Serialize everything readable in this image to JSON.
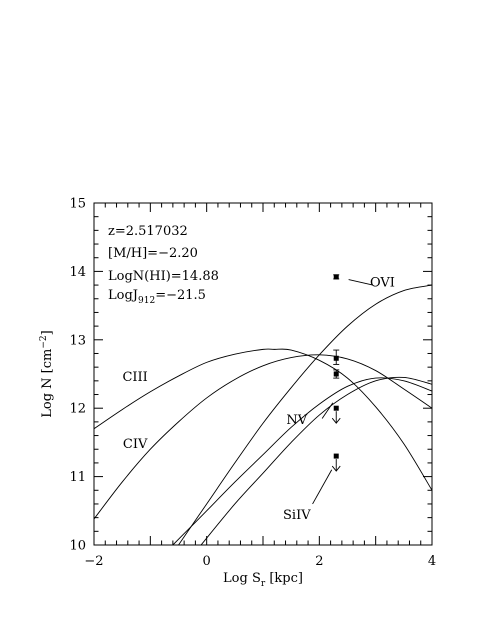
{
  "chart_data": {
    "type": "line",
    "xlabel_main": "Log S",
    "xlabel_sub": "r",
    "xlabel_unit": " [kpc]",
    "ylabel": "Log N [cm",
    "ylabel_sup": "−2",
    "ylabel_close": "]",
    "xlim": [
      -2,
      4
    ],
    "ylim": [
      10,
      15
    ],
    "x_ticks": [
      "−2",
      "0",
      "2",
      "4"
    ],
    "y_ticks": [
      "10",
      "11",
      "12",
      "13",
      "14",
      "15"
    ],
    "annotations": {
      "z": "z=2.517032",
      "metallicity": "[M/H]=−2.20",
      "nhi": "LogN(HI)=14.88",
      "j_main": "LogJ",
      "j_sub": "912",
      "j_value": "=−21.5"
    },
    "series": [
      {
        "name": "CIII",
        "x": [
          -2,
          -1.5,
          -1,
          -0.5,
          0,
          0.5,
          1,
          1.2,
          1.5,
          2,
          2.5,
          3,
          3.5,
          4
        ],
        "y": [
          11.7,
          11.98,
          12.24,
          12.47,
          12.67,
          12.79,
          12.86,
          12.86,
          12.85,
          12.7,
          12.44,
          12.02,
          11.48,
          10.8
        ]
      },
      {
        "name": "CIV",
        "x": [
          -2,
          -1.5,
          -1,
          -0.5,
          0,
          0.5,
          1,
          1.5,
          2,
          2.5,
          3,
          3.5,
          4
        ],
        "y": [
          10.38,
          10.92,
          11.4,
          11.8,
          12.15,
          12.42,
          12.62,
          12.74,
          12.78,
          12.72,
          12.55,
          12.28,
          12.0
        ]
      },
      {
        "name": "OVI",
        "x": [
          -0.5,
          0,
          0.5,
          1,
          1.5,
          2,
          2.5,
          3,
          3.5,
          4
        ],
        "y": [
          10.0,
          10.6,
          11.2,
          11.78,
          12.3,
          12.78,
          13.2,
          13.52,
          13.72,
          13.8
        ]
      },
      {
        "name": "NV",
        "x": [
          -0.6,
          -0.3,
          0,
          0.5,
          1,
          1.5,
          2,
          2.5,
          3,
          3.5,
          4
        ],
        "y": [
          10.0,
          10.25,
          10.5,
          10.92,
          11.32,
          11.72,
          12.06,
          12.32,
          12.44,
          12.4,
          12.25
        ]
      },
      {
        "name": "SiIV",
        "x": [
          -0.1,
          0.5,
          1,
          1.5,
          2,
          2.5,
          3,
          3.5,
          4
        ],
        "y": [
          10.0,
          10.6,
          11.05,
          11.5,
          11.9,
          12.2,
          12.4,
          12.45,
          12.35
        ]
      }
    ],
    "measurements": [
      {
        "ion": "OVI",
        "x": 2.3,
        "y": 13.92,
        "err_low": 0.03,
        "err_high": 0.03,
        "upper_limit": false
      },
      {
        "ion": "CIV",
        "x": 2.3,
        "y": 12.73,
        "err_low": 0.09,
        "err_high": 0.12,
        "upper_limit": false
      },
      {
        "ion": "CIII",
        "x": 2.3,
        "y": 12.5,
        "err_low": 0.06,
        "err_high": 0.06,
        "upper_limit": false
      },
      {
        "ion": "NV",
        "x": 2.3,
        "y": 12.0,
        "err_low": 0,
        "err_high": 0,
        "upper_limit": true
      },
      {
        "ion": "SiIV",
        "x": 2.3,
        "y": 11.3,
        "err_low": 0,
        "err_high": 0,
        "upper_limit": true
      }
    ],
    "curve_labels": [
      {
        "text": "CIII",
        "x": -1.27,
        "y": 12.4
      },
      {
        "text": "CIV",
        "x": -1.27,
        "y": 11.42
      },
      {
        "text": "OVI",
        "x": 3.12,
        "y": 13.78
      },
      {
        "text": "NV",
        "x": 1.6,
        "y": 11.77
      },
      {
        "text": "SiIV",
        "x": 1.6,
        "y": 10.38
      }
    ],
    "leaders": [
      {
        "ion": "OVI",
        "from": [
          2.52,
          13.88
        ],
        "to": [
          2.95,
          13.8
        ]
      },
      {
        "ion": "NV",
        "from": [
          2.05,
          11.85
        ],
        "to": [
          2.24,
          12.08
        ]
      },
      {
        "ion": "SiIV",
        "from": [
          1.88,
          10.6
        ],
        "to": [
          2.22,
          11.1
        ]
      }
    ],
    "grid": false
  }
}
